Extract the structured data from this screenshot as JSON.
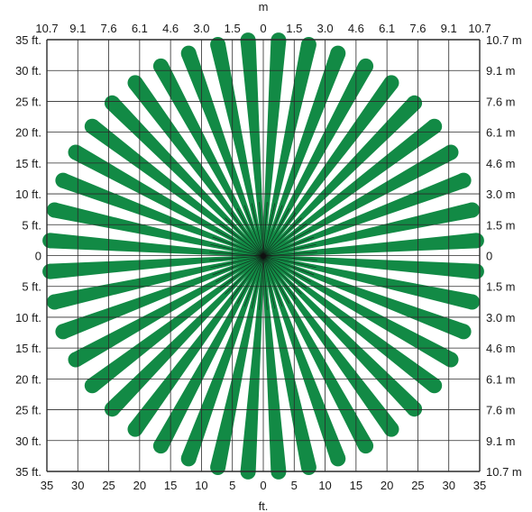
{
  "diagram": {
    "top_unit": "m",
    "bottom_unit": "ft.",
    "top_labels": [
      "10.7",
      "9.1",
      "7.6",
      "6.1",
      "4.6",
      "3.0",
      "1.5",
      "0",
      "1.5",
      "3.0",
      "4.6",
      "6.1",
      "7.6",
      "9.1",
      "10.7"
    ],
    "bottom_labels": [
      "35",
      "30",
      "25",
      "20",
      "15",
      "10",
      "5",
      "0",
      "5",
      "10",
      "15",
      "20",
      "25",
      "30",
      "35"
    ],
    "left_labels": [
      "35 ft.",
      "30 ft.",
      "25 ft.",
      "20 ft.",
      "15 ft.",
      "10 ft.",
      "5 ft.",
      "0",
      "5 ft.",
      "10 ft.",
      "15 ft.",
      "20 ft.",
      "25 ft.",
      "30 ft.",
      "35 ft."
    ],
    "right_labels": [
      "10.7 m",
      "9.1 m",
      "7.6 m",
      "6.1 m",
      "4.6 m",
      "3.0 m",
      "1.5 m",
      "0",
      "1.5 m",
      "3.0 m",
      "4.6 m",
      "6.1 m",
      "7.6 m",
      "9.1 m",
      "10.7 m"
    ],
    "beam_count": 44,
    "beam_range_ft": 35,
    "colors": {
      "beam": "#128a45",
      "grid": "#2b2b2b",
      "hub": "#111111"
    }
  }
}
